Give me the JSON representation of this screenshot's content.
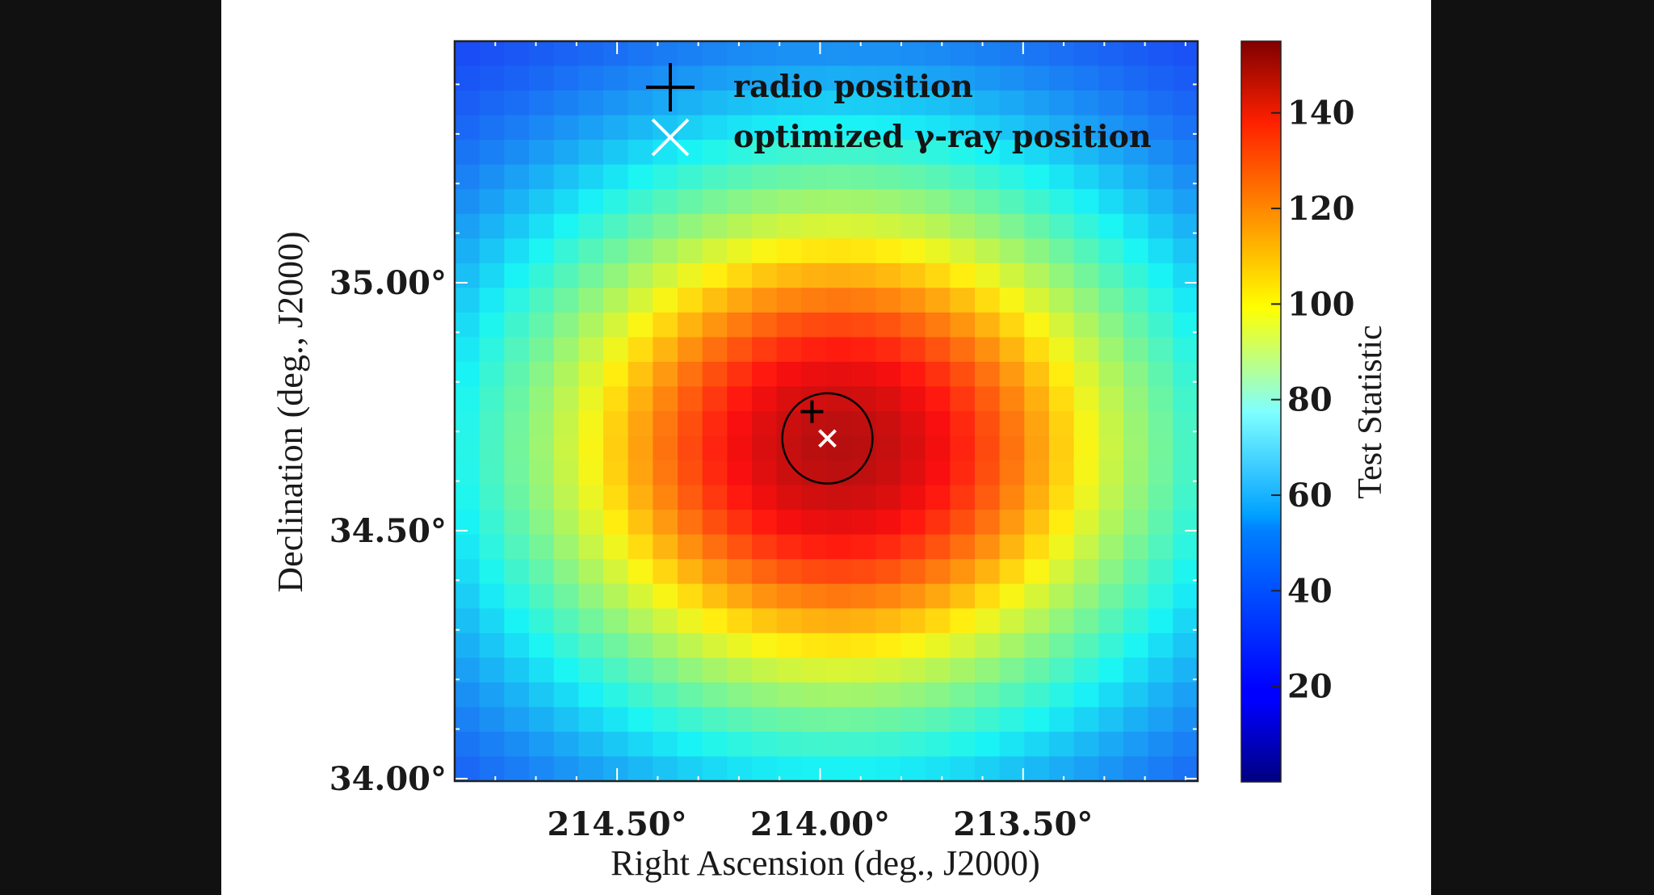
{
  "chart_data": {
    "type": "heatmap",
    "title": "",
    "xlabel": "Right Ascension (deg., J2000)",
    "ylabel": "Declination (deg., J2000)",
    "colorbar_label": "Test Statistic",
    "colormap": "jet",
    "colorbar_range": [
      0,
      155
    ],
    "colorbar_ticks": [
      20,
      40,
      60,
      80,
      100,
      120,
      140
    ],
    "colorbar_tick_labels": [
      "20",
      "40",
      "60",
      "80",
      "100",
      "120",
      "140"
    ],
    "xlim": [
      214.9,
      213.07
    ],
    "ylim": [
      33.995,
      35.487
    ],
    "x_inverted": true,
    "x_ticks": [
      214.5,
      214.0,
      213.5
    ],
    "x_tick_labels": [
      "214.50°",
      "214.00°",
      "213.50°"
    ],
    "x_minor_step": 0.1,
    "y_ticks": [
      34.0,
      34.5,
      35.0
    ],
    "y_tick_labels": [
      "34.00°",
      "34.50°",
      "35.00°"
    ],
    "y_minor_step": 0.1,
    "grid": false,
    "pixel_grid": {
      "columns": 30,
      "rows": 30
    },
    "ts_model": {
      "description": "TS per pixel = base + amplitude * ra_profile[col] * dec_profile[row] (row 0 = top)",
      "base": 25,
      "amplitude": 123,
      "peak_ts": 148,
      "ra_profile": [
        0.287,
        0.337,
        0.392,
        0.45,
        0.512,
        0.575,
        0.638,
        0.701,
        0.762,
        0.819,
        0.871,
        0.915,
        0.951,
        0.978,
        0.994,
        1.0,
        0.994,
        0.978,
        0.951,
        0.915,
        0.871,
        0.819,
        0.762,
        0.701,
        0.638,
        0.575,
        0.512,
        0.45,
        0.392,
        0.337
      ],
      "dec_profile": [
        0.135,
        0.172,
        0.216,
        0.267,
        0.325,
        0.389,
        0.458,
        0.531,
        0.607,
        0.682,
        0.755,
        0.823,
        0.882,
        0.932,
        0.969,
        0.992,
        1.0,
        0.992,
        0.969,
        0.932,
        0.882,
        0.823,
        0.755,
        0.682,
        0.607,
        0.531,
        0.458,
        0.389,
        0.325,
        0.267
      ]
    },
    "markers": [
      {
        "name": "radio position",
        "symbol": "plus",
        "color": "#000000",
        "ra": 214.02,
        "dec": 34.74
      },
      {
        "name": "optimized γ-ray position",
        "symbol": "x",
        "color": "#ffffff",
        "ra": 213.982,
        "dec": 34.686
      }
    ],
    "error_circle": {
      "ra": 213.982,
      "dec": 34.686,
      "radius_deg": 0.091,
      "color": "#000000"
    },
    "legend": {
      "placement": "top-center",
      "entries": [
        {
          "symbol": "plus",
          "color": "#000000",
          "label": "radio position"
        },
        {
          "symbol": "x",
          "color": "#ffffff",
          "label": "optimized γ-ray position"
        }
      ]
    }
  }
}
